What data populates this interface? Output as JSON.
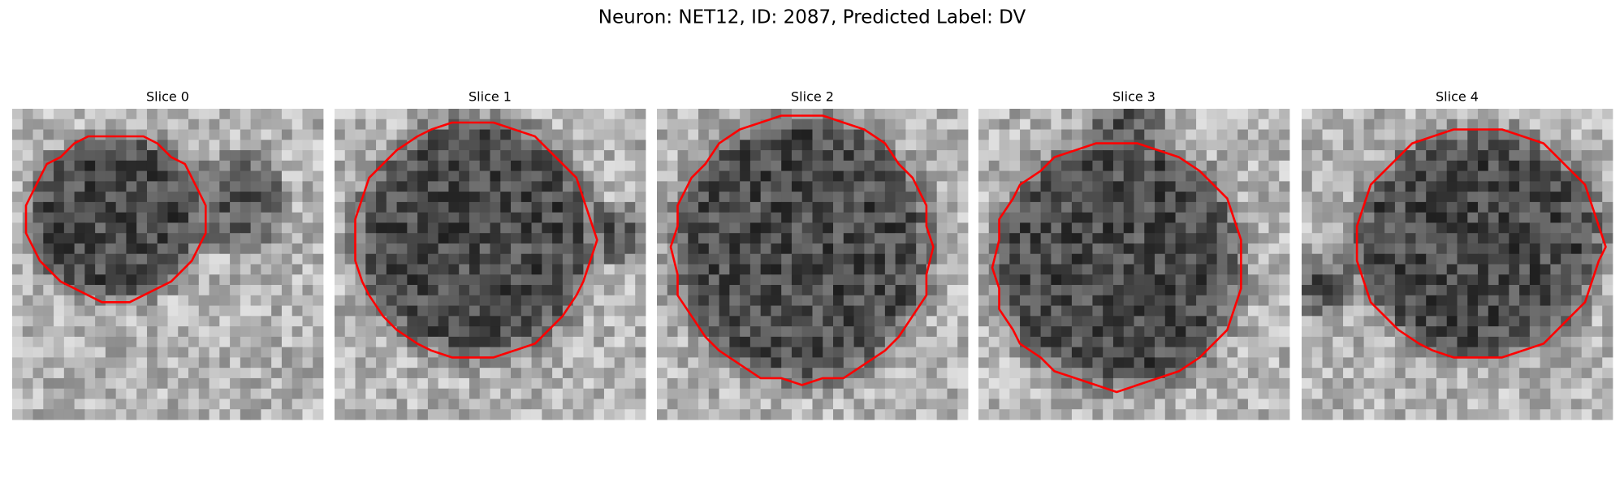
{
  "header": {
    "title": "Neuron: NET12, ID: 2087, Predicted Label: DV"
  },
  "panels": [
    {
      "title": "Slice 0"
    },
    {
      "title": "Slice 1"
    },
    {
      "title": "Slice 2"
    },
    {
      "title": "Slice 3"
    },
    {
      "title": "Slice 4"
    }
  ]
}
